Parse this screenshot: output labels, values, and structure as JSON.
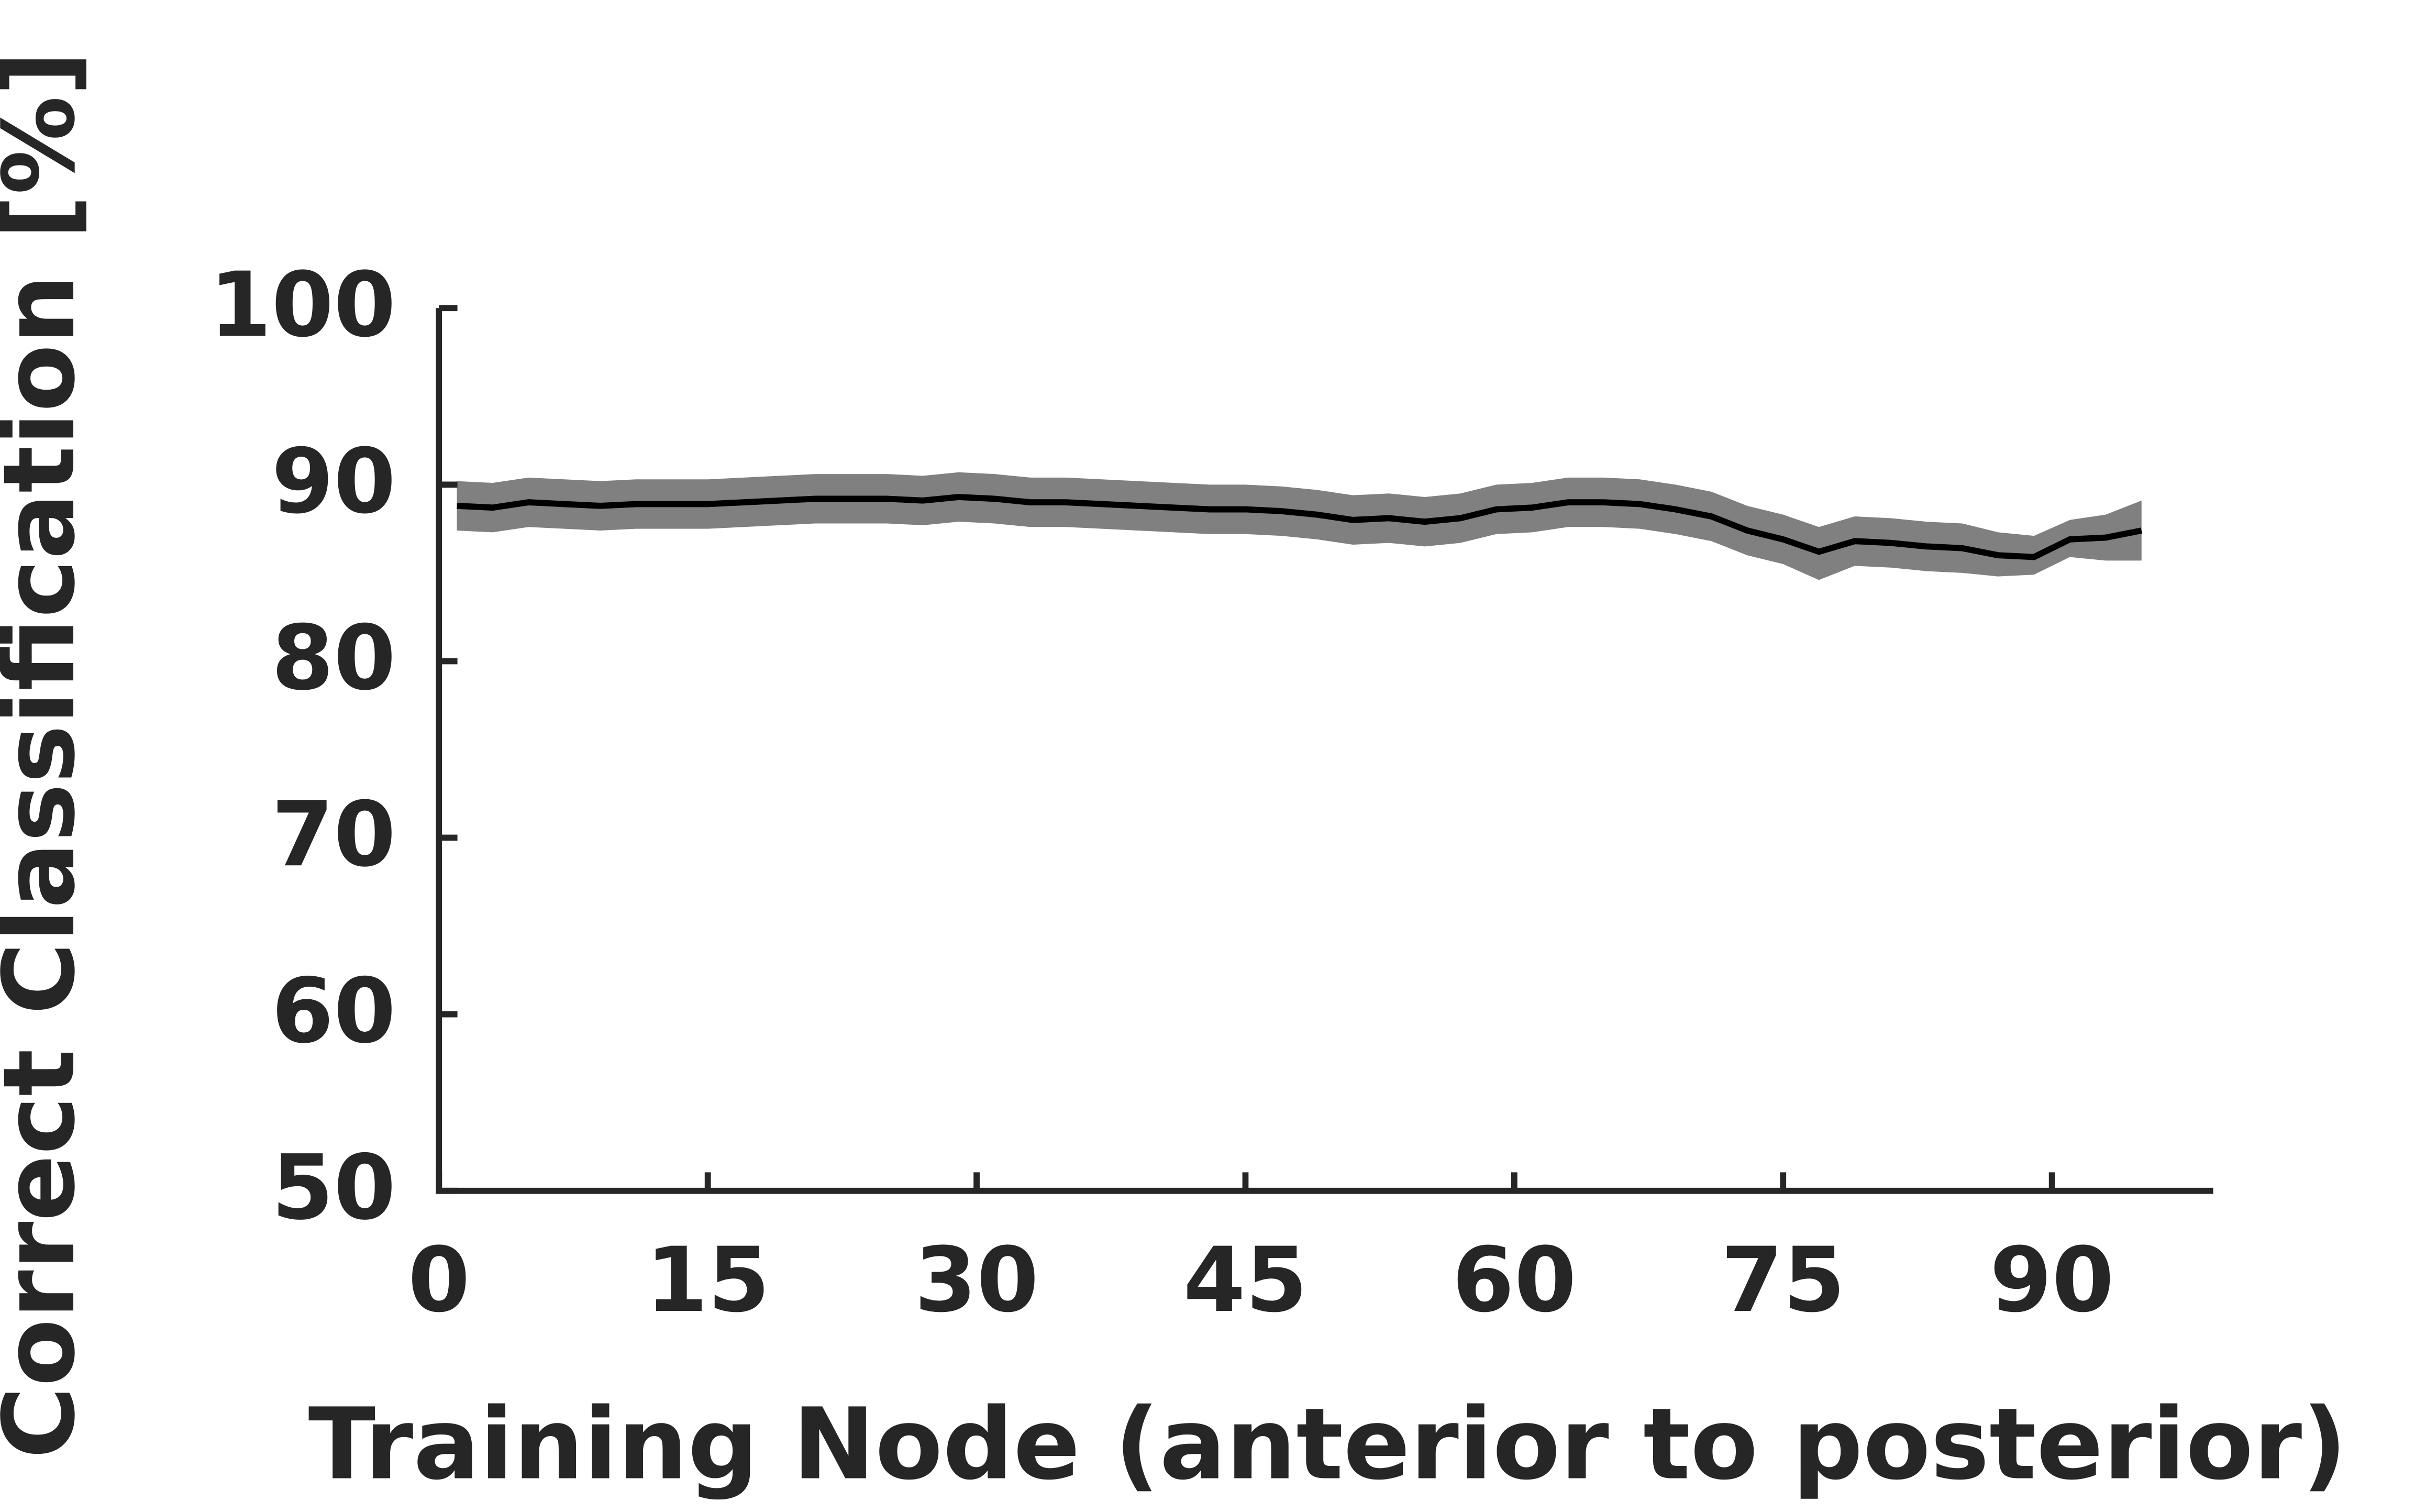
{
  "chart_data": {
    "type": "line",
    "xlabel": "Training Node (anterior to posterior)",
    "ylabel": "Correct Classification [%]",
    "xlim": [
      0,
      99
    ],
    "xticks": [
      0,
      15,
      30,
      45,
      60,
      75,
      90
    ],
    "ylim": [
      50,
      100
    ],
    "yticks": [
      50,
      60,
      70,
      80,
      90,
      100
    ],
    "color": "#000000",
    "band_color": "#808080",
    "x": [
      1,
      3,
      5,
      7,
      9,
      11,
      13,
      15,
      17,
      19,
      21,
      23,
      25,
      27,
      29,
      31,
      33,
      35,
      37,
      39,
      41,
      43,
      45,
      47,
      49,
      51,
      53,
      55,
      57,
      59,
      61,
      63,
      65,
      67,
      69,
      71,
      73,
      75,
      77,
      79,
      81,
      83,
      85,
      87,
      89,
      91,
      93,
      95
    ],
    "values": [
      88.8,
      88.7,
      89.0,
      88.9,
      88.8,
      88.9,
      88.9,
      88.9,
      89.0,
      89.1,
      89.2,
      89.2,
      89.2,
      89.1,
      89.3,
      89.2,
      89.0,
      89.0,
      88.9,
      88.8,
      88.7,
      88.6,
      88.6,
      88.5,
      88.3,
      88.0,
      88.1,
      87.9,
      88.1,
      88.6,
      88.7,
      89.0,
      89.0,
      88.9,
      88.6,
      88.2,
      87.4,
      86.9,
      86.2,
      86.8,
      86.7,
      86.5,
      86.4,
      86.0,
      85.9,
      86.9,
      87.0,
      87.4
    ],
    "lower": [
      87.4,
      87.3,
      87.6,
      87.5,
      87.4,
      87.5,
      87.5,
      87.5,
      87.6,
      87.7,
      87.8,
      87.8,
      87.8,
      87.7,
      87.9,
      87.8,
      87.6,
      87.6,
      87.5,
      87.4,
      87.3,
      87.2,
      87.2,
      87.1,
      86.9,
      86.6,
      86.7,
      86.5,
      86.7,
      87.2,
      87.3,
      87.6,
      87.6,
      87.5,
      87.2,
      86.8,
      86.0,
      85.5,
      84.6,
      85.4,
      85.3,
      85.1,
      85.0,
      84.8,
      84.9,
      85.9,
      85.7,
      85.7
    ],
    "upper": [
      90.2,
      90.1,
      90.4,
      90.3,
      90.2,
      90.3,
      90.3,
      90.3,
      90.4,
      90.5,
      90.6,
      90.6,
      90.6,
      90.5,
      90.7,
      90.6,
      90.4,
      90.4,
      90.3,
      90.2,
      90.1,
      90.0,
      90.0,
      89.9,
      89.7,
      89.4,
      89.5,
      89.3,
      89.5,
      90.0,
      90.1,
      90.4,
      90.4,
      90.3,
      90.0,
      89.6,
      88.8,
      88.3,
      87.6,
      88.2,
      88.1,
      87.9,
      87.8,
      87.3,
      87.1,
      88.0,
      88.3,
      89.1
    ]
  }
}
